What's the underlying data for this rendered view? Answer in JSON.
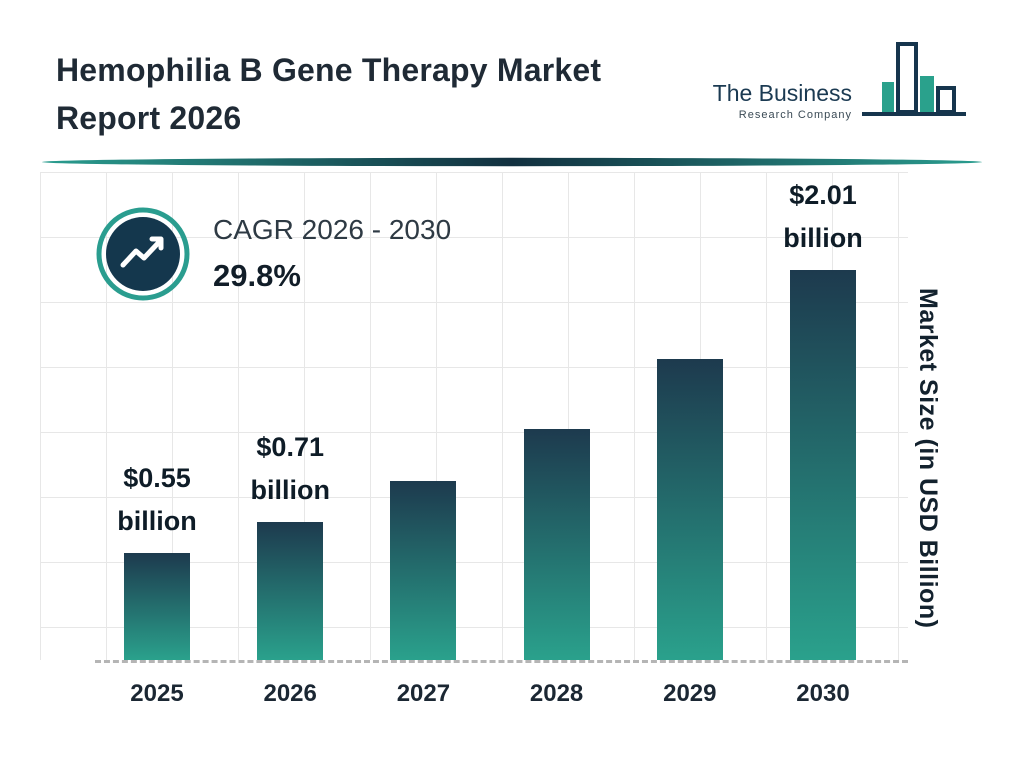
{
  "header": {
    "title_line1": "Hemophilia B Gene Therapy Market",
    "title_line2": "Report 2026",
    "logo": {
      "name": "The Business",
      "subtitle": "Research Company"
    }
  },
  "chart_data": {
    "type": "bar",
    "title": "Hemophilia B Gene Therapy Market Report 2026",
    "categories": [
      "2025",
      "2026",
      "2027",
      "2028",
      "2029",
      "2030"
    ],
    "values": [
      0.55,
      0.71,
      0.92,
      1.19,
      1.55,
      2.01
    ],
    "unit": "USD Billion",
    "value_labels": [
      [
        "$0.55",
        "billion"
      ],
      [
        "$0.71",
        "billion"
      ],
      null,
      null,
      null,
      [
        "$2.01",
        "billion"
      ]
    ],
    "ylabel": "Market Size (in USD Billion)",
    "ylim": [
      0,
      2.2
    ],
    "grid": true,
    "legend": false,
    "cagr": {
      "label": "CAGR 2026 - 2030",
      "value": "29.8%"
    },
    "bar_color_top": "#1d3a4e",
    "bar_color_bottom": "#2aa18c",
    "accent_teal": "#2a9d8f",
    "accent_navy": "#16354d"
  }
}
